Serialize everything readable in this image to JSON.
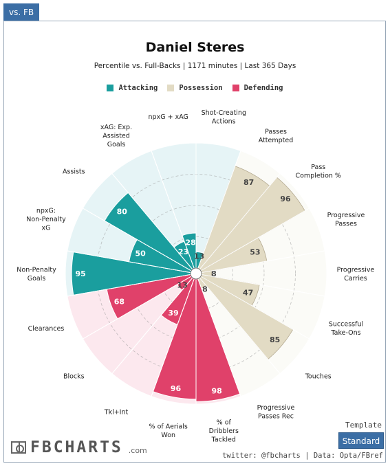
{
  "tab": {
    "label": "vs. FB"
  },
  "colors": {
    "attacking": "#1a9e9e",
    "possession": "#e2dbc4",
    "defending": "#e0416a",
    "attacking_bg": "#e6f4f6",
    "possession_bg": "#fbfbf7",
    "defending_bg": "#fce8ee",
    "tab_blue": "#3b6ea5"
  },
  "chart_data": {
    "type": "polar-bar",
    "title": "Daniel Steres",
    "subtitle": "Percentile vs. Full-Backs | 1171 minutes | Last 365 Days",
    "legend": [
      {
        "label": "Attacking",
        "key": "attacking"
      },
      {
        "label": "Possession",
        "key": "possession"
      },
      {
        "label": "Defending",
        "key": "defending"
      }
    ],
    "rlim": [
      0,
      100
    ],
    "categories": [
      {
        "label": "Shot-Creating Actions",
        "value": 13,
        "group": "attacking"
      },
      {
        "label": "Passes Attempted",
        "value": 87,
        "group": "possession"
      },
      {
        "label": "Pass Completion %",
        "value": 96,
        "group": "possession"
      },
      {
        "label": "Progressive Passes",
        "value": 53,
        "group": "possession"
      },
      {
        "label": "Progressive Carries",
        "value": 8,
        "group": "possession"
      },
      {
        "label": "Successful Take-Ons",
        "value": 47,
        "group": "possession"
      },
      {
        "label": "Touches",
        "value": 85,
        "group": "possession"
      },
      {
        "label": "Progressive Passes Rec",
        "value": 8,
        "group": "possession"
      },
      {
        "label": "% of Dribblers Tackled",
        "value": 98,
        "group": "defending"
      },
      {
        "label": "% of Aerials Won",
        "value": 96,
        "group": "defending"
      },
      {
        "label": "Tkl+Int",
        "value": 39,
        "group": "defending"
      },
      {
        "label": "Blocks",
        "value": 13,
        "group": "defending"
      },
      {
        "label": "Clearances",
        "value": 68,
        "group": "defending"
      },
      {
        "label": "Non-Penalty Goals",
        "value": 95,
        "group": "attacking"
      },
      {
        "label": "npxG: Non-Penalty xG",
        "value": 50,
        "group": "attacking"
      },
      {
        "label": "Assists",
        "value": 80,
        "group": "attacking"
      },
      {
        "label": "xAG: Exp. Assisted Goals",
        "value": 23,
        "group": "attacking"
      },
      {
        "label": "npxG + xAG",
        "value": 28,
        "group": "attacking"
      }
    ]
  },
  "footer": {
    "template_label": "Template",
    "template_button": "Standard",
    "logo_text": "FBCHARTS",
    "logo_suffix": ".com",
    "credit": "twitter: @fbcharts | Data: Opta/FBref"
  }
}
